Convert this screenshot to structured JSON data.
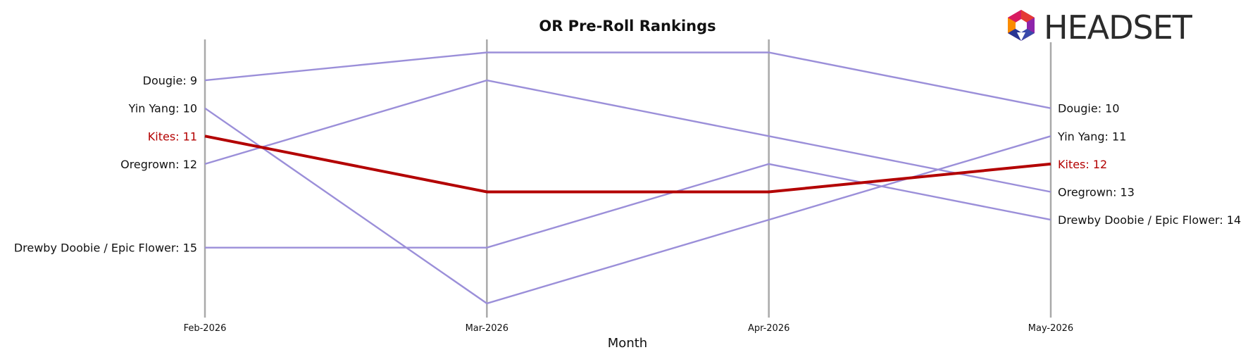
{
  "chart_data": {
    "type": "line",
    "title": "OR Pre-Roll Rankings",
    "xlabel": "Month",
    "ylabel": "",
    "x": [
      "Feb-2026",
      "Mar-2026",
      "Apr-2026",
      "May-2026"
    ],
    "y_inverted": true,
    "ylim": [
      7.5,
      17.5
    ],
    "series": [
      {
        "name": "Dougie",
        "values": [
          9,
          8,
          8,
          10
        ],
        "highlight": false
      },
      {
        "name": "Yin Yang",
        "values": [
          10,
          17,
          14,
          11
        ],
        "highlight": false
      },
      {
        "name": "Kites",
        "values": [
          11,
          13,
          13,
          12
        ],
        "highlight": true
      },
      {
        "name": "Oregrown",
        "values": [
          12,
          9,
          11,
          13
        ],
        "highlight": false
      },
      {
        "name": "Drewby Doobie / Epic Flower",
        "values": [
          15,
          15,
          12,
          14
        ],
        "highlight": false
      }
    ],
    "left_labels": [
      "Dougie: 9",
      "Yin Yang: 10",
      "Kites: 11",
      "Oregrown: 12",
      "Drewby Doobie / Epic Flower: 15"
    ],
    "right_labels": [
      "Dougie: 10",
      "Yin Yang: 11",
      "Kites: 12",
      "Oregrown: 13",
      "Drewby Doobie / Epic Flower: 14"
    ],
    "grid": false,
    "colors": {
      "series": "#9b8fd9",
      "highlight": "#b30000",
      "axis_line": "#a9a9a9",
      "text": "#111111"
    }
  },
  "logo": {
    "text": "HEADSET"
  }
}
